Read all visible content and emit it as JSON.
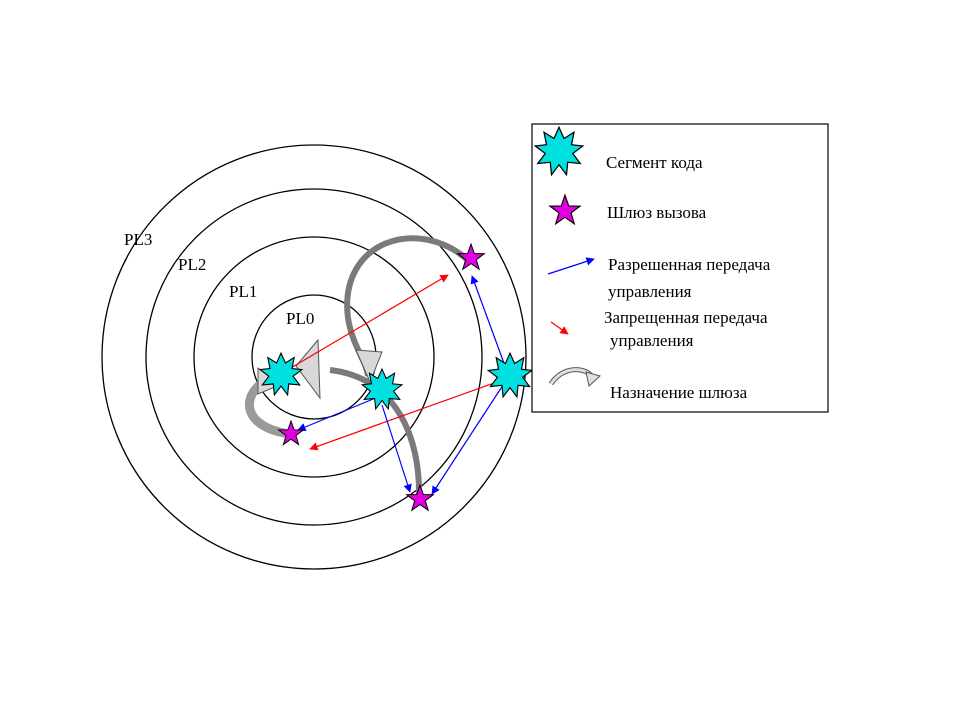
{
  "rings": [
    {
      "label": "PL0"
    },
    {
      "label": "PL1"
    },
    {
      "label": "PL2"
    },
    {
      "label": "PL3"
    }
  ],
  "legend": {
    "code_segment": "Сегмент кода",
    "call_gate": "Шлюз вызова",
    "allowed_line1": "Разрешенная передача",
    "allowed_line2": "управления",
    "forbidden_line1": "Запрещенная передача",
    "forbidden_line2": "управления",
    "gate_assignment": "Назначение шлюза"
  },
  "icons": {
    "code_segment": "cyan-burst-icon",
    "call_gate": "magenta-star-icon",
    "allowed_arrow": "blue-arrow-icon",
    "forbidden_arrow": "red-arrow-icon",
    "gate_arrow": "gray-curved-arrow-icon"
  },
  "colors": {
    "code_segment": "#00e0e0",
    "call_gate": "#e000e0",
    "allowed": "#0000ff",
    "forbidden": "#ff0000",
    "gate_arrow": "#808080"
  }
}
